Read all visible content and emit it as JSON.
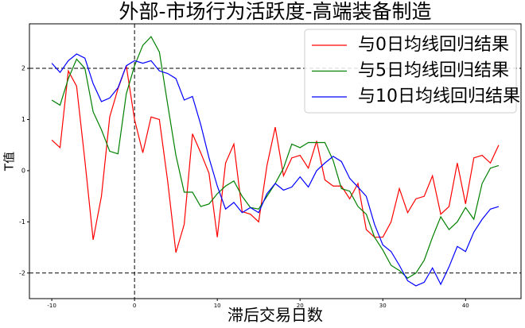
{
  "chart_data": {
    "type": "line",
    "title": "外部-市场行为活跃度-高端装备制造",
    "x_label": "滞后交易日数",
    "y_label": "T值",
    "x": [
      -10,
      -9,
      -8,
      -7,
      -6,
      -5,
      -4,
      -3,
      -2,
      -1,
      0,
      1,
      2,
      3,
      4,
      5,
      6,
      7,
      8,
      9,
      10,
      11,
      12,
      13,
      14,
      15,
      16,
      17,
      18,
      19,
      20,
      21,
      22,
      23,
      24,
      25,
      26,
      27,
      28,
      29,
      30,
      31,
      32,
      33,
      34,
      35,
      36,
      37,
      38,
      39,
      40,
      41,
      42,
      43,
      44
    ],
    "series": [
      {
        "name": "与0日均线回归结果",
        "color": "#ff0000",
        "values": [
          0.6,
          0.45,
          1.95,
          1.65,
          0.2,
          -1.35,
          -0.5,
          1.05,
          1.6,
          2.05,
          1.0,
          0.35,
          1.05,
          1.0,
          -0.2,
          -1.6,
          -1.05,
          0.72,
          0.35,
          -0.05,
          -1.3,
          0.15,
          0.52,
          -0.8,
          -0.85,
          -1.0,
          0.1,
          0.85,
          -0.1,
          0.25,
          0.3,
          0.05,
          0.58,
          -0.18,
          -0.3,
          -0.3,
          -0.55,
          -0.25,
          -1.15,
          -1.3,
          -1.3,
          -1.0,
          -0.35,
          -0.82,
          -0.55,
          -0.5,
          -0.1,
          -0.85,
          -0.7,
          0.15,
          -0.65,
          0.25,
          0.3,
          0.15,
          0.5
        ]
      },
      {
        "name": "与5日均线回归结果",
        "color": "#008000",
        "values": [
          1.38,
          1.28,
          1.8,
          2.18,
          2.0,
          1.15,
          0.8,
          0.38,
          0.33,
          1.5,
          2.05,
          2.45,
          2.62,
          2.32,
          1.3,
          0.3,
          -0.42,
          -0.42,
          -0.7,
          -0.65,
          -0.45,
          -0.3,
          -0.2,
          -0.5,
          -0.72,
          -0.75,
          -0.5,
          -0.25,
          0.05,
          0.52,
          0.45,
          0.55,
          0.55,
          0.55,
          0.2,
          -0.35,
          -0.4,
          -0.7,
          -0.85,
          -1.3,
          -1.55,
          -1.85,
          -1.95,
          -2.1,
          -2.0,
          -1.75,
          -1.3,
          -0.9,
          -1.15,
          -1.0,
          -0.72,
          -0.95,
          -0.25,
          0.05,
          0.1
        ]
      },
      {
        "name": "与10日均线回归结果",
        "color": "#0000ff",
        "values": [
          2.1,
          1.92,
          2.15,
          2.28,
          2.2,
          1.7,
          1.35,
          1.42,
          1.62,
          2.05,
          2.15,
          2.1,
          2.15,
          1.95,
          1.9,
          1.8,
          1.38,
          1.45,
          0.9,
          0.25,
          -0.3,
          -0.75,
          -0.62,
          -0.82,
          -0.72,
          -0.82,
          -0.45,
          -0.25,
          -0.38,
          -0.32,
          -0.12,
          -0.32,
          0.0,
          0.15,
          0.28,
          0.18,
          -0.15,
          -0.32,
          -0.5,
          -1.05,
          -1.45,
          -1.58,
          -1.85,
          -2.15,
          -2.25,
          -2.18,
          -1.9,
          -2.22,
          -1.88,
          -1.48,
          -1.58,
          -1.2,
          -0.95,
          -0.75,
          -0.7
        ]
      }
    ],
    "xlim": [
      -12.7,
      46.7
    ],
    "ylim": [
      -2.5,
      2.87
    ],
    "xticks": [
      -10,
      0,
      10,
      20,
      30,
      40
    ],
    "yticks": [
      -2,
      -1,
      0,
      1,
      2
    ],
    "hlines": [
      2,
      -2
    ],
    "vlines": [
      0
    ],
    "legend": "upper right",
    "grid": false
  }
}
